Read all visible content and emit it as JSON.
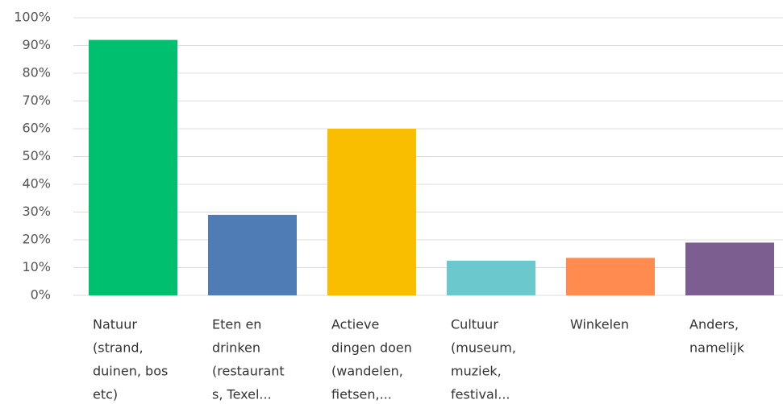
{
  "chart_data": {
    "type": "bar",
    "categories": [
      [
        "Natuur",
        "(strand,",
        "duinen, bos",
        "etc)"
      ],
      [
        "Eten en",
        "drinken",
        "(restaurant",
        "s, Texel..."
      ],
      [
        "Actieve",
        "dingen doen",
        "(wandelen,",
        "fietsen,..."
      ],
      [
        "Cultuur",
        "(museum,",
        "muziek,",
        "festival..."
      ],
      [
        "Winkelen"
      ],
      [
        "Anders,",
        "namelijk"
      ]
    ],
    "values": [
      92,
      29,
      60,
      12.5,
      13.5,
      19
    ],
    "colors": [
      "#00bf6f",
      "#507cb6",
      "#f9be00",
      "#6bc8cd",
      "#ff8b4f",
      "#7d5e90"
    ],
    "ylim": [
      0,
      100
    ],
    "yticks": [
      {
        "value": 0,
        "label": "0%"
      },
      {
        "value": 10,
        "label": "10%"
      },
      {
        "value": 20,
        "label": "20%"
      },
      {
        "value": 30,
        "label": "30%"
      },
      {
        "value": 40,
        "label": "40%"
      },
      {
        "value": 50,
        "label": "50%"
      },
      {
        "value": 60,
        "label": "60%"
      },
      {
        "value": 70,
        "label": "70%"
      },
      {
        "value": 80,
        "label": "80%"
      },
      {
        "value": 90,
        "label": "90%"
      },
      {
        "value": 100,
        "label": "100%"
      }
    ],
    "grid": true
  }
}
